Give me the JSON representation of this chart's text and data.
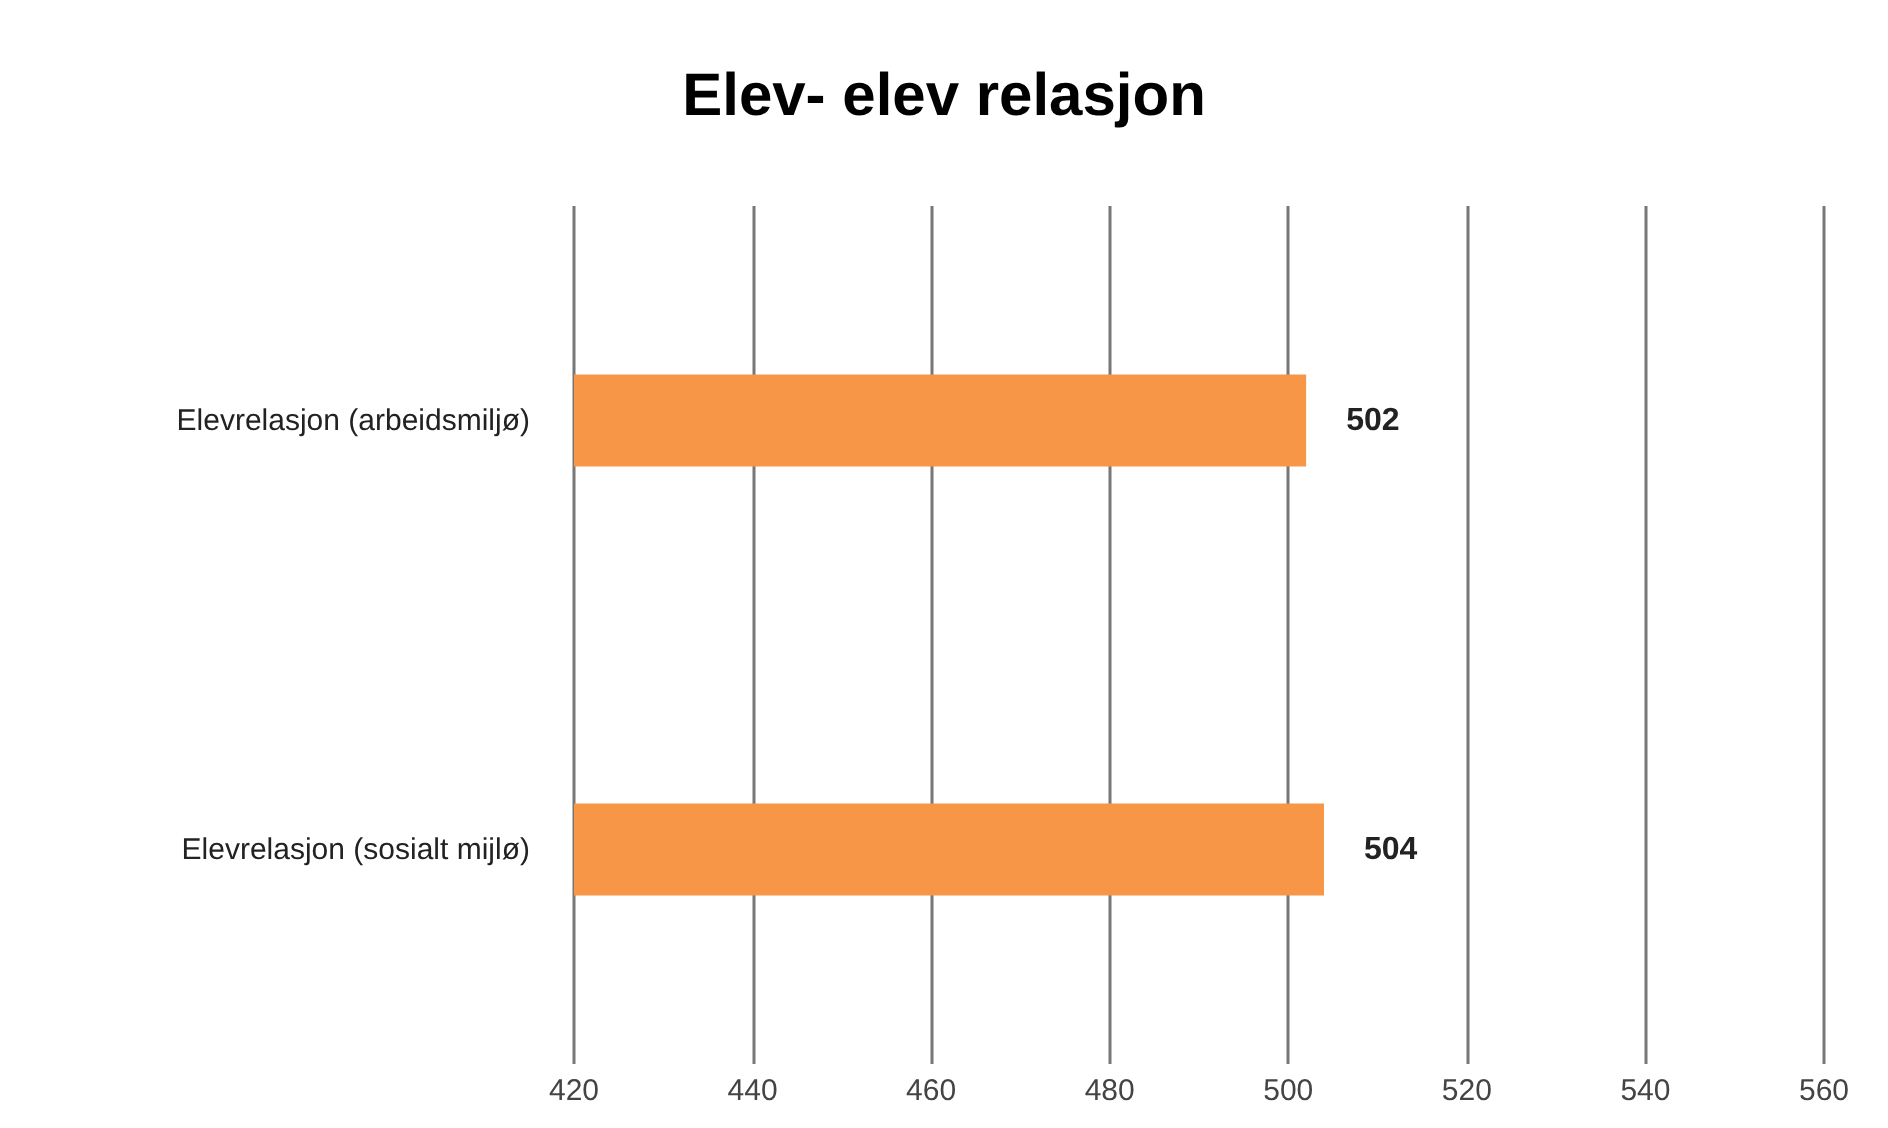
{
  "chart_data": {
    "type": "bar",
    "orientation": "horizontal",
    "title": "Elev- elev relasjon",
    "categories": [
      "Elevrelasjon (arbeidsmiljø)",
      "Elevrelasjon (sosialt mijlø)"
    ],
    "values": [
      502,
      504
    ],
    "color": "#f79646",
    "data_labels": true,
    "xlim": [
      420,
      560
    ],
    "xticks": [
      420,
      440,
      460,
      480,
      500,
      520,
      540,
      560
    ],
    "grid": "x"
  }
}
